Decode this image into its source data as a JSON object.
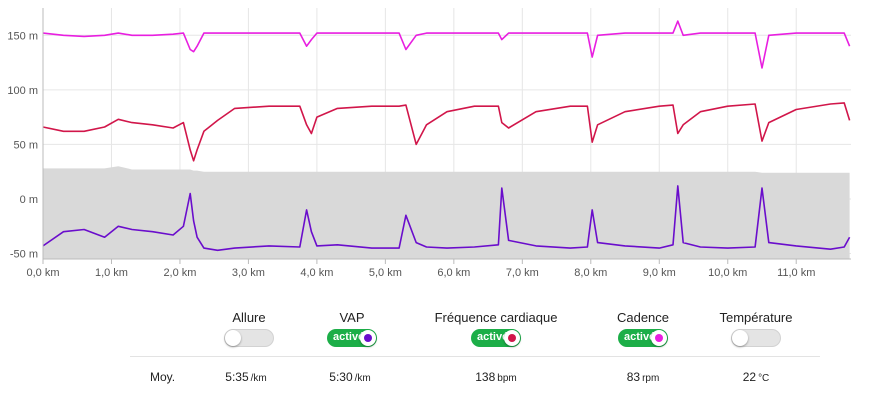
{
  "chart_data": {
    "type": "line",
    "xlabel": "",
    "ylabel": "",
    "xlim": [
      0,
      11.8
    ],
    "ylim": [
      -55,
      175
    ],
    "x_ticks": [
      "0,0 km",
      "1,0 km",
      "2,0 km",
      "3,0 km",
      "4,0 km",
      "5,0 km",
      "6,0 km",
      "7,0 km",
      "8,0 km",
      "9,0 km",
      "10,0 km",
      "11,0 km"
    ],
    "y_ticks": [
      "150 m",
      "100 m",
      "50 m",
      "0 m",
      "-50 m"
    ],
    "grid": true,
    "x": [
      0.0,
      0.3,
      0.6,
      0.9,
      1.1,
      1.3,
      1.6,
      1.9,
      2.05,
      2.15,
      2.2,
      2.25,
      2.35,
      2.55,
      2.8,
      3.3,
      3.75,
      3.85,
      3.92,
      4.0,
      4.3,
      4.8,
      5.2,
      5.3,
      5.45,
      5.6,
      5.9,
      6.3,
      6.65,
      6.7,
      6.8,
      7.2,
      7.7,
      7.95,
      8.02,
      8.1,
      8.5,
      9.0,
      9.2,
      9.27,
      9.35,
      9.6,
      10.0,
      10.4,
      10.5,
      10.6,
      11.0,
      11.5,
      11.7,
      11.78
    ],
    "series": [
      {
        "color": "#e81fe0",
        "values": [
          152,
          150,
          149,
          150,
          152,
          150,
          150,
          151,
          152,
          137,
          135,
          140,
          152,
          152,
          152,
          152,
          152,
          140,
          146,
          152,
          152,
          152,
          152,
          137,
          150,
          152,
          152,
          152,
          152,
          146,
          152,
          152,
          152,
          152,
          130,
          150,
          152,
          152,
          152,
          163,
          150,
          152,
          152,
          152,
          120,
          150,
          152,
          152,
          152,
          140
        ]
      },
      {
        "color": "#d1164a",
        "values": [
          66,
          62,
          62,
          66,
          73,
          70,
          68,
          65,
          70,
          45,
          35,
          45,
          62,
          72,
          83,
          85,
          85,
          68,
          60,
          75,
          83,
          85,
          85,
          86,
          50,
          68,
          80,
          85,
          85,
          70,
          65,
          80,
          85,
          85,
          52,
          68,
          80,
          85,
          86,
          60,
          68,
          80,
          85,
          87,
          53,
          70,
          82,
          87,
          88,
          72
        ]
      },
      {
        "color": "#6a0dcc",
        "values": [
          -43,
          -30,
          -28,
          -35,
          -25,
          -28,
          -30,
          -33,
          -25,
          5,
          -20,
          -35,
          -45,
          -47,
          -45,
          -43,
          -44,
          -10,
          -30,
          -43,
          -42,
          -45,
          -45,
          -15,
          -40,
          -44,
          -45,
          -44,
          -42,
          10,
          -38,
          -43,
          -45,
          -44,
          -10,
          -40,
          -43,
          -45,
          -42,
          12,
          -40,
          -44,
          -45,
          -44,
          10,
          -40,
          -43,
          -46,
          -44,
          -35
        ]
      },
      {
        "type": "area",
        "color": "#d9d9d9",
        "values": [
          28,
          28,
          28,
          28,
          30,
          27,
          27,
          27,
          27,
          27,
          26,
          26,
          25,
          25,
          25,
          25,
          25,
          25,
          25,
          25,
          25,
          25,
          25,
          25,
          25,
          25,
          25,
          25,
          25,
          25,
          25,
          25,
          25,
          25,
          25,
          25,
          25,
          25,
          25,
          25,
          25,
          25,
          25,
          25,
          24,
          24,
          24,
          24,
          24,
          24
        ]
      }
    ]
  },
  "toggles": [
    {
      "label": "Allure",
      "state": "off",
      "on_text": "",
      "color": ""
    },
    {
      "label": "VAP",
      "state": "on",
      "on_text": "activé",
      "color": "#6a0dcc"
    },
    {
      "label": "Fréquence cardiaque",
      "state": "on",
      "on_text": "activé",
      "color": "#d1164a"
    },
    {
      "label": "Cadence",
      "state": "on",
      "on_text": "activé",
      "color": "#e81fe0"
    },
    {
      "label": "Température",
      "state": "off",
      "on_text": "",
      "color": ""
    }
  ],
  "averages": {
    "label": "Moy.",
    "values": [
      {
        "value": "5:35",
        "unit": "/km"
      },
      {
        "value": "5:30",
        "unit": "/km"
      },
      {
        "value": "138",
        "unit": "bpm"
      },
      {
        "value": "83",
        "unit": "rpm"
      },
      {
        "value": "22",
        "unit": "°C"
      }
    ]
  }
}
